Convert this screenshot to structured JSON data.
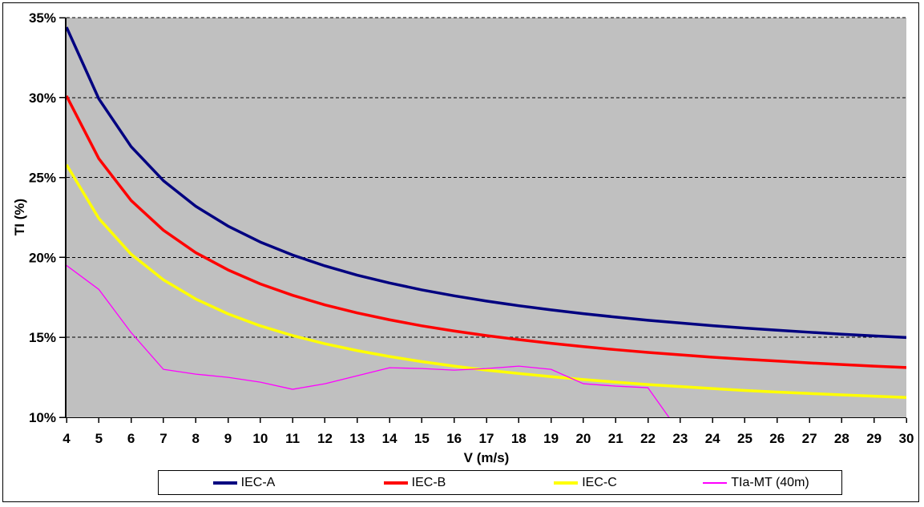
{
  "figure": {
    "background": "#ffffff",
    "border_color": "#000000"
  },
  "chart_data": {
    "type": "line",
    "title": "",
    "xlabel": "V (m/s)",
    "ylabel": "TI (%)",
    "xlim": [
      4,
      30
    ],
    "ylim": [
      10,
      35
    ],
    "x_ticks": [
      4,
      5,
      6,
      7,
      8,
      9,
      10,
      11,
      12,
      13,
      14,
      15,
      16,
      17,
      18,
      19,
      20,
      21,
      22,
      23,
      24,
      25,
      26,
      27,
      28,
      29,
      30
    ],
    "y_tick_values": [
      10,
      15,
      20,
      25,
      30,
      35
    ],
    "y_tick_labels": [
      "10%",
      "15%",
      "20%",
      "25%",
      "30%",
      "35%"
    ],
    "grid": "horizontal dashed black lines at each 5% level",
    "plot_background": "#c0c0c0",
    "gridline_color": "#000000",
    "legend_position": "bottom",
    "x": [
      4,
      5,
      6,
      7,
      8,
      9,
      10,
      11,
      12,
      13,
      14,
      15,
      16,
      17,
      18,
      19,
      20,
      21,
      22,
      23,
      24,
      25,
      26,
      27,
      28,
      29,
      30
    ],
    "series": [
      {
        "name": "IEC-A",
        "color": "#000080",
        "line_width": 3.5,
        "values": [
          34.4,
          29.92,
          26.93,
          24.8,
          23.2,
          21.96,
          20.96,
          20.15,
          19.47,
          18.89,
          18.4,
          17.97,
          17.6,
          17.27,
          16.98,
          16.72,
          16.48,
          16.27,
          16.07,
          15.9,
          15.73,
          15.58,
          15.45,
          15.32,
          15.2,
          15.09,
          14.99
        ]
      },
      {
        "name": "IEC-B",
        "color": "#ff0000",
        "line_width": 3.5,
        "values": [
          30.1,
          26.18,
          23.56,
          21.7,
          20.3,
          19.22,
          18.34,
          17.63,
          17.03,
          16.53,
          16.1,
          15.72,
          15.4,
          15.11,
          14.86,
          14.63,
          14.42,
          14.23,
          14.06,
          13.91,
          13.76,
          13.63,
          13.52,
          13.4,
          13.3,
          13.2,
          13.11
        ]
      },
      {
        "name": "IEC-C",
        "color": "#ffff00",
        "line_width": 3.5,
        "values": [
          25.8,
          22.44,
          20.2,
          18.6,
          17.4,
          16.47,
          15.72,
          15.11,
          14.6,
          14.17,
          13.8,
          13.48,
          13.2,
          12.95,
          12.74,
          12.54,
          12.36,
          12.2,
          12.05,
          11.92,
          11.8,
          11.68,
          11.58,
          11.49,
          11.4,
          11.32,
          11.24
        ]
      },
      {
        "name": "TIa-MT (40m)",
        "color": "#ff00ff",
        "line_width": 1.3,
        "x": [
          4,
          5,
          6,
          7,
          8,
          9,
          10,
          11,
          12,
          13,
          14,
          15,
          16,
          17,
          18,
          19,
          20,
          21,
          22,
          23
        ],
        "values": [
          19.5,
          18.0,
          15.3,
          13.0,
          12.7,
          12.5,
          12.2,
          11.75,
          12.1,
          12.6,
          13.1,
          13.05,
          12.95,
          13.05,
          13.2,
          13.0,
          12.1,
          11.95,
          11.85,
          9.0
        ]
      }
    ]
  }
}
